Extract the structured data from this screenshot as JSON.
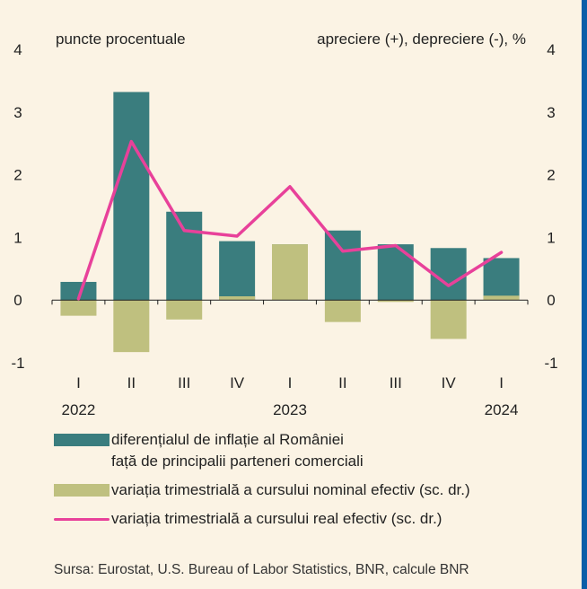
{
  "colors": {
    "background": "#fbf3e4",
    "inflation_bar": "#3a7d7e",
    "nominal_bar": "#bfc07f",
    "real_line": "#e8419a",
    "frame": "#0b5ea8"
  },
  "chart_data": {
    "type": "bar",
    "left_unit_label": "puncte procentuale",
    "right_unit_label": "apreciere (+), depreciere (-), %",
    "ylim": [
      -1,
      4
    ],
    "y_ticks": [
      "4",
      "3",
      "2",
      "1",
      "0",
      "-1"
    ],
    "categories": [
      "I",
      "II",
      "III",
      "IV",
      "I",
      "II",
      "III",
      "IV",
      "I"
    ],
    "years": [
      {
        "label": "2022",
        "category_index": 0
      },
      {
        "label": "2023",
        "category_index": 4
      },
      {
        "label": "2024",
        "category_index": 8
      }
    ],
    "series": [
      {
        "name": "diferențialul de inflație al României față de principalii parteneri comerciali",
        "type": "bar",
        "color": "#3a7d7e",
        "values": [
          0.29,
          3.32,
          1.41,
          0.94,
          0.89,
          1.11,
          0.89,
          0.83,
          0.67
        ]
      },
      {
        "name": "variația trimestrială a cursului nominal efectiv (sc. dr.)",
        "type": "bar",
        "color": "#bfc07f",
        "values": [
          -0.25,
          -0.83,
          -0.31,
          0.06,
          0.89,
          -0.35,
          -0.03,
          -0.62,
          0.07
        ]
      },
      {
        "name": "variația trimestrială a cursului real efectiv (sc. dr.)",
        "type": "line",
        "color": "#e8419a",
        "values": [
          0.02,
          2.53,
          1.11,
          1.02,
          1.81,
          0.78,
          0.87,
          0.23,
          0.76
        ]
      }
    ]
  },
  "legend": {
    "inflation_line1": "diferențialul de inflație al României",
    "inflation_line2": "față de principalii parteneri comerciali",
    "nominal": "variația trimestrială a cursului nominal efectiv (sc. dr.)",
    "real": "variația trimestrială a cursului real efectiv (sc. dr.)"
  },
  "source": "Sursa: Eurostat, U.S. Bureau of Labor Statistics, BNR, calcule BNR"
}
